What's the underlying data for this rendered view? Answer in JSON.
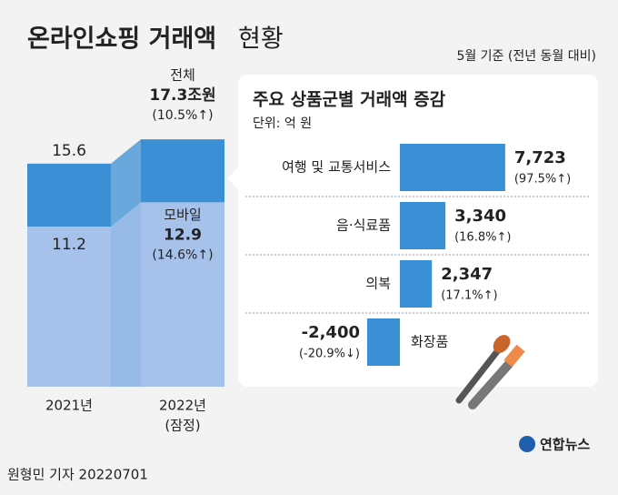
{
  "header": {
    "title": "온라인쇼핑 거래액",
    "title_suffix": "현황",
    "subtitle": "5월 기준 (전년 동월 대비)"
  },
  "chart_data": [
    {
      "type": "bar",
      "orientation": "vertical",
      "overlap": true,
      "categories": [
        "2021년",
        "2022년"
      ],
      "category_notes": [
        null,
        "(잠정)"
      ],
      "ylim": [
        0,
        17.5
      ],
      "series": [
        {
          "name": "전체",
          "color": "#3b8fd4",
          "values": [
            15.6,
            17.3
          ],
          "value_labels": [
            "15.6",
            "17.3조원"
          ],
          "changes": [
            null,
            "(10.5%↑)"
          ]
        },
        {
          "name": "모바일",
          "color": "#a7c2ea",
          "values": [
            11.2,
            12.9
          ],
          "changes": [
            null,
            "(14.6%↑)"
          ]
        }
      ]
    },
    {
      "type": "bar",
      "orientation": "horizontal",
      "title": "주요 상품군별 거래액 증감",
      "unit": "단위: 억 원",
      "categories": [
        "여행 및 교통서비스",
        "음·식료품",
        "의복",
        "화장품"
      ],
      "values": [
        7723,
        3340,
        2347,
        -2400
      ],
      "value_labels": [
        "7,723",
        "3,340",
        "2,347",
        "-2,400"
      ],
      "changes": [
        "(97.5%↑)",
        "(16.8%↑)",
        "(17.1%↑)",
        "(-20.9%↓)"
      ],
      "color": "#3b8fd4",
      "xlim": [
        -10000,
        10000
      ]
    }
  ],
  "footer": {
    "byline": "원형민 기자  20220701",
    "logo": "연합뉴스"
  }
}
